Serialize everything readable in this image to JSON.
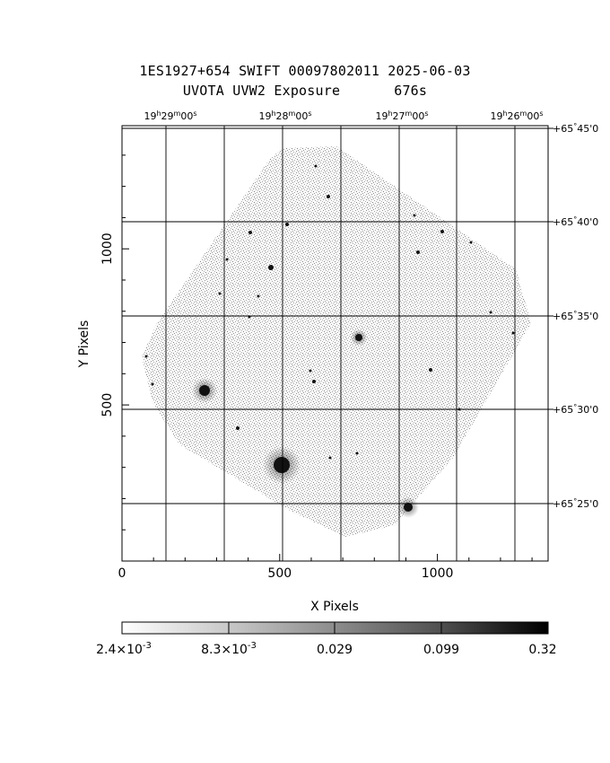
{
  "title_line1": "1ES1927+654 SWIFT 00097802011 2025-06-03",
  "title_line2_left": "UVOTA UVW2 Exposure",
  "title_line2_right": "676s",
  "x_axis": {
    "label": "X Pixels",
    "ticks": [
      {
        "value": 0,
        "label": "0"
      },
      {
        "value": 500,
        "label": "500"
      },
      {
        "value": 1000,
        "label": "1000"
      }
    ]
  },
  "y_axis": {
    "label": "Y Pixels",
    "ticks": [
      {
        "value": 500,
        "label": "500"
      },
      {
        "value": 1000,
        "label": "1000"
      }
    ]
  },
  "ra_ticks": [
    {
      "h": "19",
      "m": "29",
      "s": "00"
    },
    {
      "h": "19",
      "m": "28",
      "s": "00"
    },
    {
      "h": "19",
      "m": "27",
      "s": "00"
    },
    {
      "h": "19",
      "m": "26",
      "s": "00"
    }
  ],
  "dec_ticks": [
    {
      "deg": "+65",
      "min": "45",
      "sec": "0"
    },
    {
      "deg": "+65",
      "min": "40",
      "sec": "0"
    },
    {
      "deg": "+65",
      "min": "35",
      "sec": "0"
    },
    {
      "deg": "+65",
      "min": "30",
      "sec": "0"
    },
    {
      "deg": "+65",
      "min": "25",
      "sec": "0"
    }
  ],
  "colorbar": {
    "labels": [
      {
        "mantissa": "2.4",
        "exp": "-3"
      },
      {
        "mantissa": "8.3",
        "exp": "-3"
      },
      {
        "mantissa": "0.029",
        "exp": ""
      },
      {
        "mantissa": "0.099",
        "exp": ""
      },
      {
        "mantissa": "0.32",
        "exp": ""
      }
    ]
  }
}
